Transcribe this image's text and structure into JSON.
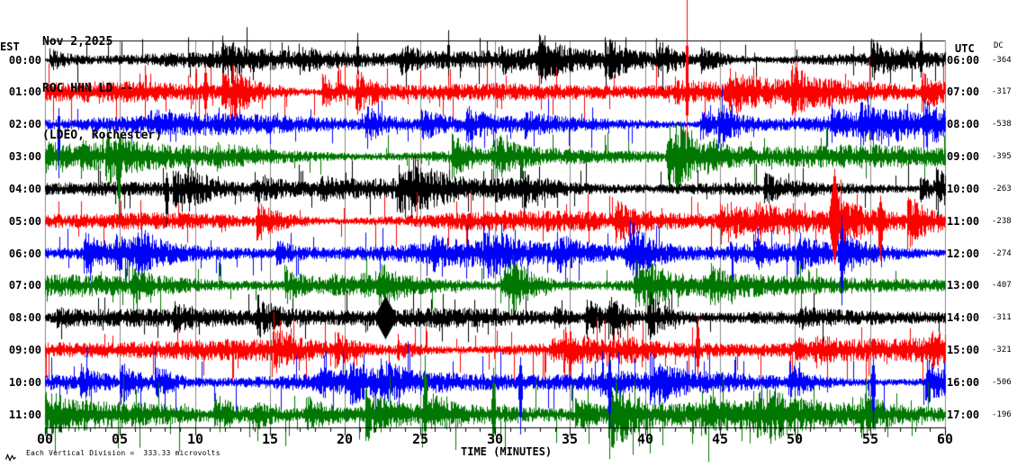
{
  "header": {
    "date": "Nov 2,2025",
    "station": "ROC HHN LD --",
    "network": "(LDEO, Rochester)"
  },
  "left_axis": {
    "label": "EST"
  },
  "right_axis": {
    "label": "UTC",
    "dc_label": "DC"
  },
  "x_axis": {
    "title": "TIME (MINUTES)",
    "tick_labels": [
      "00",
      "05",
      "10",
      "15",
      "20",
      "25",
      "30",
      "35",
      "40",
      "45",
      "50",
      "55",
      "60"
    ]
  },
  "footer": {
    "scale_note": "Each Vertical Division =  333.33 microvolts"
  },
  "chart_data": {
    "type": "line",
    "title": "Helicorder seismogram, station ROC HHN LD (LDEO, Rochester), Nov 2,2025",
    "xlabel": "TIME (MINUTES)",
    "x_range": [
      0,
      60
    ],
    "grid_interval_minutes": 5,
    "minor_tick_minutes": 1,
    "row_meaning": "each trace = one hour; EST label left, UTC label right, DC offset at far right",
    "colors": {
      "black": "#000000",
      "red": "#ff0000",
      "blue": "#0000ff",
      "green": "#007700",
      "grid": "#8a8a8a",
      "axis": "#000000"
    },
    "rows": [
      {
        "est": "00:00",
        "utc": "06:00",
        "dc": "-364",
        "color": "black",
        "seed": 11,
        "amp": 9,
        "spike": 18,
        "spike_rate": 0.02
      },
      {
        "est": "01:00",
        "utc": "07:00",
        "dc": "-317",
        "color": "red",
        "seed": 23,
        "amp": 10,
        "spike": 22,
        "spike_rate": 0.028
      },
      {
        "est": "02:00",
        "utc": "08:00",
        "dc": "-538",
        "color": "blue",
        "seed": 37,
        "amp": 9,
        "spike": 16,
        "spike_rate": 0.02
      },
      {
        "est": "03:00",
        "utc": "09:00",
        "dc": "-395",
        "color": "green",
        "seed": 41,
        "amp": 10,
        "spike": 20,
        "spike_rate": 0.024
      },
      {
        "est": "04:00",
        "utc": "10:00",
        "dc": "-263",
        "color": "black",
        "seed": 53,
        "amp": 9,
        "spike": 20,
        "spike_rate": 0.02
      },
      {
        "est": "05:00",
        "utc": "11:00",
        "dc": "-238",
        "color": "red",
        "seed": 67,
        "amp": 10,
        "spike": 22,
        "spike_rate": 0.028
      },
      {
        "est": "06:00",
        "utc": "12:00",
        "dc": "-274",
        "color": "blue",
        "seed": 71,
        "amp": 10,
        "spike": 20,
        "spike_rate": 0.024
      },
      {
        "est": "07:00",
        "utc": "13:00",
        "dc": "-407",
        "color": "green",
        "seed": 83,
        "amp": 9,
        "spike": 18,
        "spike_rate": 0.022
      },
      {
        "est": "08:00",
        "utc": "14:00",
        "dc": "-311",
        "color": "black",
        "seed": 97,
        "amp": 9,
        "spike": 20,
        "spike_rate": 0.024
      },
      {
        "est": "09:00",
        "utc": "15:00",
        "dc": "-321",
        "color": "red",
        "seed": 103,
        "amp": 10,
        "spike": 24,
        "spike_rate": 0.03
      },
      {
        "est": "10:00",
        "utc": "16:00",
        "dc": "-506",
        "color": "blue",
        "seed": 113,
        "amp": 10,
        "spike": 26,
        "spike_rate": 0.03
      },
      {
        "est": "11:00",
        "utc": "17:00",
        "dc": "-196",
        "color": "green",
        "seed": 127,
        "amp": 12,
        "spike": 26,
        "spike_rate": 0.034
      }
    ],
    "events": [
      {
        "row": 0,
        "min": 20.8,
        "up": 30,
        "down": 16,
        "w": 1
      },
      {
        "row": 0,
        "min": 26.9,
        "up": 33,
        "down": 18,
        "w": 1
      },
      {
        "row": 0,
        "min": 33.3,
        "up": 27,
        "down": 15,
        "w": 1
      },
      {
        "row": 0,
        "min": 38.7,
        "up": 25,
        "down": 14,
        "w": 1
      },
      {
        "row": 0,
        "min": 58.4,
        "up": 30,
        "down": 20,
        "w": 2
      },
      {
        "row": 1,
        "min": 10.7,
        "up": 32,
        "down": 28,
        "w": 2
      },
      {
        "row": 1,
        "min": 42.8,
        "up": 103,
        "down": 52,
        "w": 1
      },
      {
        "row": 2,
        "min": 0.9,
        "up": 18,
        "down": 60,
        "w": 1
      },
      {
        "row": 3,
        "min": 4.9,
        "up": 22,
        "down": 70,
        "w": 2
      },
      {
        "row": 4,
        "min": 8.1,
        "up": 18,
        "down": 42,
        "w": 2
      },
      {
        "row": 5,
        "min": 52.6,
        "up": 58,
        "down": 48,
        "w": 6
      },
      {
        "row": 5,
        "min": 55.7,
        "up": 28,
        "down": 44,
        "w": 3
      },
      {
        "row": 6,
        "min": 53.1,
        "up": 42,
        "down": 58,
        "w": 2
      },
      {
        "row": 8,
        "min": 22.7,
        "up": 24,
        "down": 24,
        "w": 12
      },
      {
        "row": 9,
        "min": 43.5,
        "up": 38,
        "down": 28,
        "w": 2
      },
      {
        "row": 10,
        "min": 31.7,
        "up": 28,
        "down": 58,
        "w": 2
      },
      {
        "row": 10,
        "min": 37.6,
        "up": 32,
        "down": 52,
        "w": 2
      },
      {
        "row": 10,
        "min": 55.2,
        "up": 28,
        "down": 48,
        "w": 2
      },
      {
        "row": 11,
        "min": 25.3,
        "up": 66,
        "down": 28,
        "w": 2
      },
      {
        "row": 11,
        "min": 29.9,
        "up": 52,
        "down": 32,
        "w": 2
      }
    ]
  }
}
